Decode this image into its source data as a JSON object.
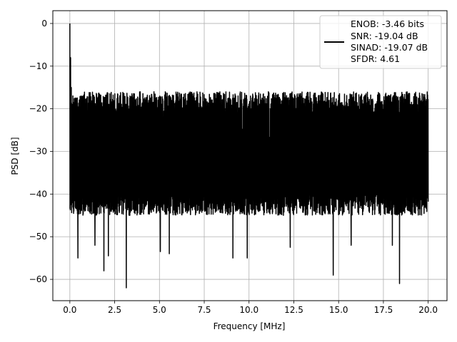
{
  "chart_data": {
    "type": "line",
    "title": "",
    "xlabel": "Frequency [MHz]",
    "ylabel": "PSD [dB]",
    "xlim": [
      -0.95,
      21.05
    ],
    "ylim": [
      -65.0,
      3.0
    ],
    "xticks": [
      0.0,
      2.5,
      5.0,
      7.5,
      10.0,
      12.5,
      15.0,
      17.5,
      20.0
    ],
    "xtick_labels": [
      "0.0",
      "2.5",
      "5.0",
      "7.5",
      "10.0",
      "12.5",
      "15.0",
      "17.5",
      "20.0"
    ],
    "yticks": [
      0,
      -10,
      -20,
      -30,
      -40,
      -50,
      -60
    ],
    "ytick_labels": [
      "0",
      "−10",
      "−20",
      "−30",
      "−40",
      "−50",
      "−60"
    ],
    "grid": true,
    "legend_placement": "top-right",
    "series": [
      {
        "name": "ENOB: -3.46 bits\nSNR: -19.04 dB\nSINAD: -19.07 dB\nSFDR: 4.61",
        "legend_lines": [
          "ENOB: -3.46 bits",
          "SNR: -19.04 dB",
          "SINAD: -19.07 dB",
          "SFDR: 4.61"
        ],
        "color": "#000000",
        "noise_floor": {
          "x_range": [
            0.0,
            20.0
          ],
          "upper_envelope_db": [
            -21,
            -16
          ],
          "lower_envelope_db": [
            -40,
            -45
          ],
          "median_db": -27
        },
        "peaks": [
          {
            "x": 0.0,
            "y": 0.0
          },
          {
            "x": 0.04,
            "y": -8.0
          },
          {
            "x": 0.08,
            "y": -15.0
          }
        ],
        "deep_nulls": [
          {
            "x": 0.45,
            "y": -55.0
          },
          {
            "x": 1.4,
            "y": -52.0
          },
          {
            "x": 1.9,
            "y": -58.0
          },
          {
            "x": 2.15,
            "y": -54.5
          },
          {
            "x": 3.15,
            "y": -62.0
          },
          {
            "x": 5.05,
            "y": -53.5
          },
          {
            "x": 5.55,
            "y": -54.0
          },
          {
            "x": 9.1,
            "y": -55.0
          },
          {
            "x": 9.9,
            "y": -55.0
          },
          {
            "x": 12.3,
            "y": -52.5
          },
          {
            "x": 14.7,
            "y": -59.0
          },
          {
            "x": 15.7,
            "y": -52.0
          },
          {
            "x": 18.4,
            "y": -61.0
          },
          {
            "x": 18.0,
            "y": -52.0
          }
        ]
      }
    ]
  }
}
